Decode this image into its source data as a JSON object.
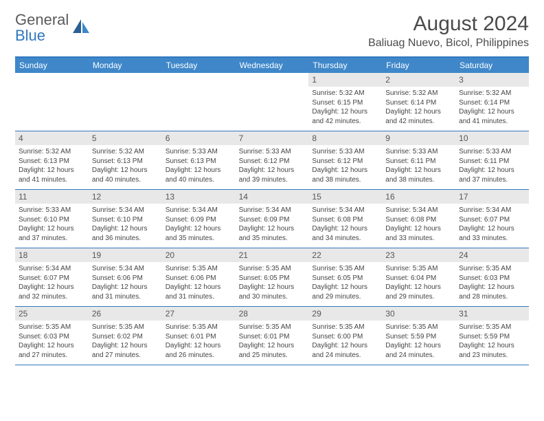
{
  "logo": {
    "text_general": "General",
    "text_blue": "Blue",
    "icon_color_dark": "#2a5f93",
    "icon_color_light": "#3f87c9"
  },
  "header": {
    "title": "August 2024",
    "location": "Baliuag Nuevo, Bicol, Philippines"
  },
  "colors": {
    "header_bg": "#3f87c9",
    "border": "#2f78bf",
    "daynum_bg": "#e8e8e8",
    "text": "#4a4a4a"
  },
  "day_names": [
    "Sunday",
    "Monday",
    "Tuesday",
    "Wednesday",
    "Thursday",
    "Friday",
    "Saturday"
  ],
  "weeks": [
    [
      null,
      null,
      null,
      null,
      {
        "n": "1",
        "sr": "5:32 AM",
        "ss": "6:15 PM",
        "dl": "12 hours and 42 minutes."
      },
      {
        "n": "2",
        "sr": "5:32 AM",
        "ss": "6:14 PM",
        "dl": "12 hours and 42 minutes."
      },
      {
        "n": "3",
        "sr": "5:32 AM",
        "ss": "6:14 PM",
        "dl": "12 hours and 41 minutes."
      }
    ],
    [
      {
        "n": "4",
        "sr": "5:32 AM",
        "ss": "6:13 PM",
        "dl": "12 hours and 41 minutes."
      },
      {
        "n": "5",
        "sr": "5:32 AM",
        "ss": "6:13 PM",
        "dl": "12 hours and 40 minutes."
      },
      {
        "n": "6",
        "sr": "5:33 AM",
        "ss": "6:13 PM",
        "dl": "12 hours and 40 minutes."
      },
      {
        "n": "7",
        "sr": "5:33 AM",
        "ss": "6:12 PM",
        "dl": "12 hours and 39 minutes."
      },
      {
        "n": "8",
        "sr": "5:33 AM",
        "ss": "6:12 PM",
        "dl": "12 hours and 38 minutes."
      },
      {
        "n": "9",
        "sr": "5:33 AM",
        "ss": "6:11 PM",
        "dl": "12 hours and 38 minutes."
      },
      {
        "n": "10",
        "sr": "5:33 AM",
        "ss": "6:11 PM",
        "dl": "12 hours and 37 minutes."
      }
    ],
    [
      {
        "n": "11",
        "sr": "5:33 AM",
        "ss": "6:10 PM",
        "dl": "12 hours and 37 minutes."
      },
      {
        "n": "12",
        "sr": "5:34 AM",
        "ss": "6:10 PM",
        "dl": "12 hours and 36 minutes."
      },
      {
        "n": "13",
        "sr": "5:34 AM",
        "ss": "6:09 PM",
        "dl": "12 hours and 35 minutes."
      },
      {
        "n": "14",
        "sr": "5:34 AM",
        "ss": "6:09 PM",
        "dl": "12 hours and 35 minutes."
      },
      {
        "n": "15",
        "sr": "5:34 AM",
        "ss": "6:08 PM",
        "dl": "12 hours and 34 minutes."
      },
      {
        "n": "16",
        "sr": "5:34 AM",
        "ss": "6:08 PM",
        "dl": "12 hours and 33 minutes."
      },
      {
        "n": "17",
        "sr": "5:34 AM",
        "ss": "6:07 PM",
        "dl": "12 hours and 33 minutes."
      }
    ],
    [
      {
        "n": "18",
        "sr": "5:34 AM",
        "ss": "6:07 PM",
        "dl": "12 hours and 32 minutes."
      },
      {
        "n": "19",
        "sr": "5:34 AM",
        "ss": "6:06 PM",
        "dl": "12 hours and 31 minutes."
      },
      {
        "n": "20",
        "sr": "5:35 AM",
        "ss": "6:06 PM",
        "dl": "12 hours and 31 minutes."
      },
      {
        "n": "21",
        "sr": "5:35 AM",
        "ss": "6:05 PM",
        "dl": "12 hours and 30 minutes."
      },
      {
        "n": "22",
        "sr": "5:35 AM",
        "ss": "6:05 PM",
        "dl": "12 hours and 29 minutes."
      },
      {
        "n": "23",
        "sr": "5:35 AM",
        "ss": "6:04 PM",
        "dl": "12 hours and 29 minutes."
      },
      {
        "n": "24",
        "sr": "5:35 AM",
        "ss": "6:03 PM",
        "dl": "12 hours and 28 minutes."
      }
    ],
    [
      {
        "n": "25",
        "sr": "5:35 AM",
        "ss": "6:03 PM",
        "dl": "12 hours and 27 minutes."
      },
      {
        "n": "26",
        "sr": "5:35 AM",
        "ss": "6:02 PM",
        "dl": "12 hours and 27 minutes."
      },
      {
        "n": "27",
        "sr": "5:35 AM",
        "ss": "6:01 PM",
        "dl": "12 hours and 26 minutes."
      },
      {
        "n": "28",
        "sr": "5:35 AM",
        "ss": "6:01 PM",
        "dl": "12 hours and 25 minutes."
      },
      {
        "n": "29",
        "sr": "5:35 AM",
        "ss": "6:00 PM",
        "dl": "12 hours and 24 minutes."
      },
      {
        "n": "30",
        "sr": "5:35 AM",
        "ss": "5:59 PM",
        "dl": "12 hours and 24 minutes."
      },
      {
        "n": "31",
        "sr": "5:35 AM",
        "ss": "5:59 PM",
        "dl": "12 hours and 23 minutes."
      }
    ]
  ],
  "labels": {
    "sunrise": "Sunrise:",
    "sunset": "Sunset:",
    "daylight": "Daylight:"
  }
}
